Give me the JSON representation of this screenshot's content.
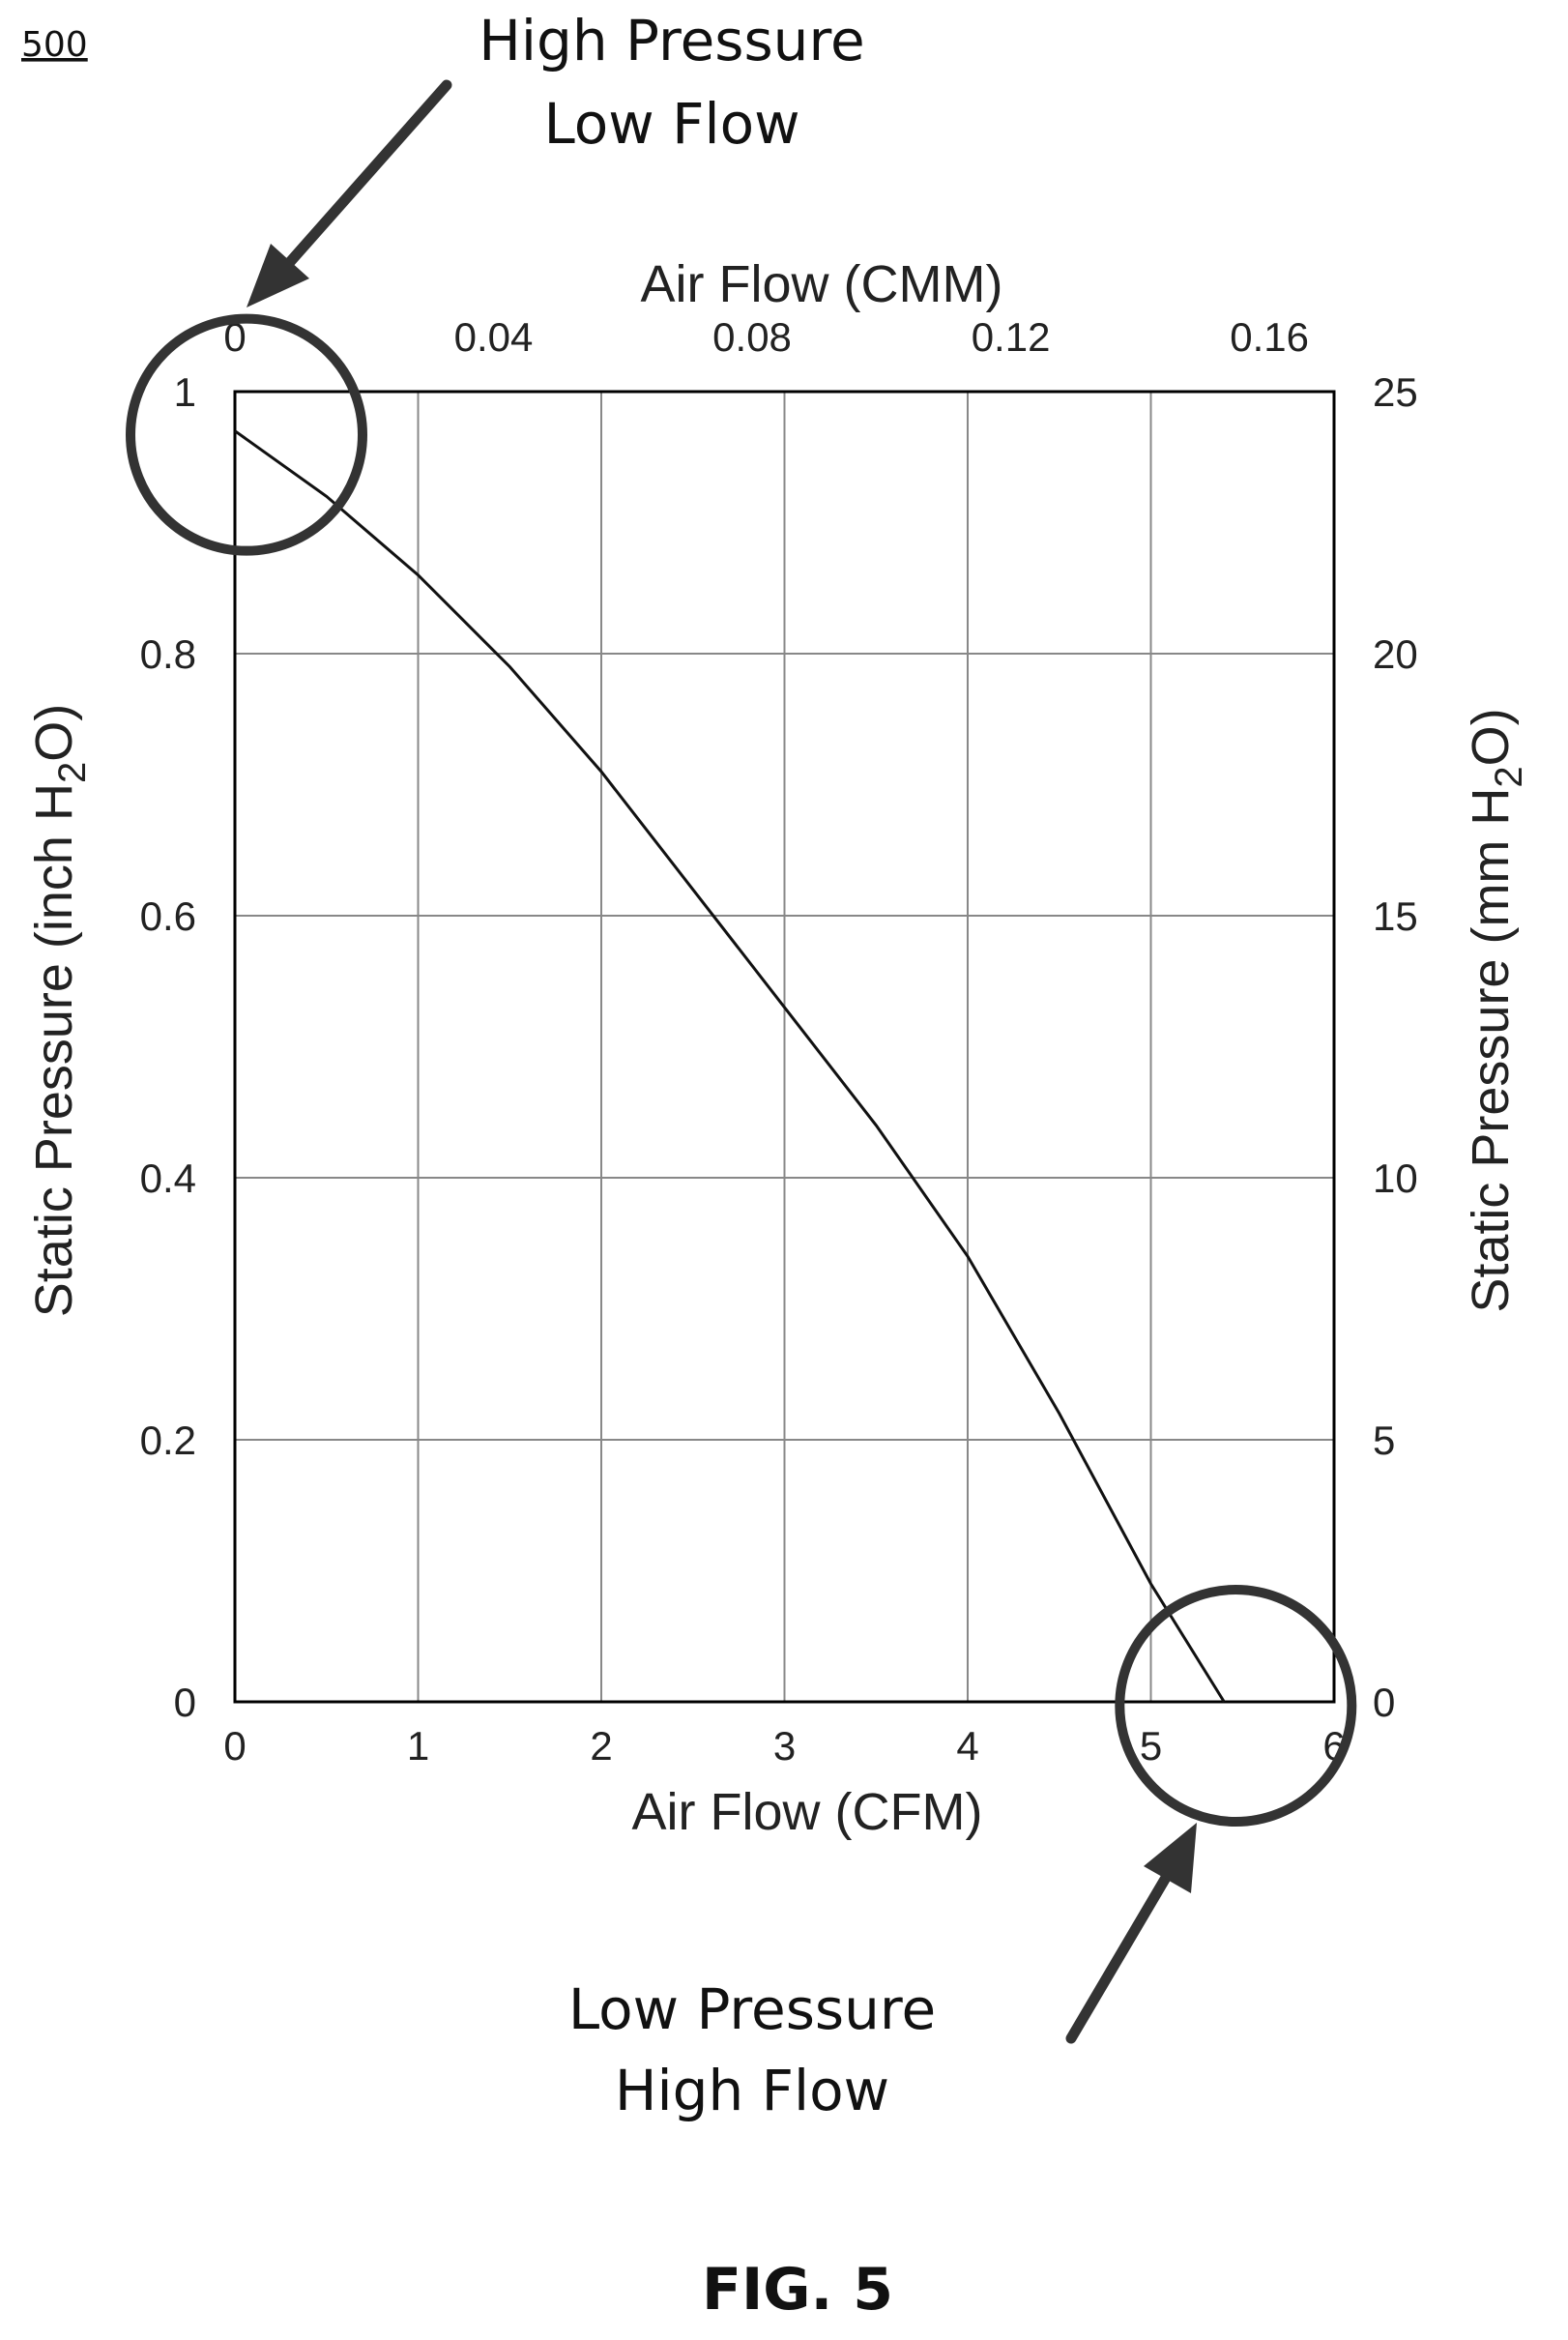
{
  "figure": {
    "ref_number": "500",
    "caption": "FIG. 5"
  },
  "annotations": {
    "top": {
      "line1": "High Pressure",
      "line2": "Low Flow"
    },
    "bottom": {
      "line1": "Low Pressure",
      "line2": "High Flow"
    }
  },
  "chart_data": {
    "type": "line",
    "xlabel": "Air Flow (CFM)",
    "x2label": "Air Flow (CMM)",
    "ylabel_left": "Static Pressure (inch H2O)",
    "ylabel_right": "Static Pressure (mm H2O)",
    "xlim": [
      0,
      6
    ],
    "ylim": [
      0,
      1
    ],
    "x2lim": [
      0,
      0.17
    ],
    "y2lim": [
      0,
      25
    ],
    "x_ticks": [
      "0",
      "1",
      "2",
      "3",
      "4",
      "5",
      "6"
    ],
    "x2_ticks": [
      "0",
      "0.04",
      "0.08",
      "0.12",
      "0.16"
    ],
    "x2_tick_values": [
      0,
      0.04,
      0.08,
      0.12,
      0.16
    ],
    "y_ticks": [
      "0",
      "0.2",
      "0.4",
      "0.6",
      "0.8",
      "1"
    ],
    "y2_ticks": [
      "0",
      "5",
      "10",
      "15",
      "20",
      "25"
    ],
    "grid": true,
    "series": [
      {
        "x": [
          0,
          0.5,
          1,
          1.5,
          2,
          2.5,
          3,
          3.5,
          4,
          4.5,
          5,
          5.4
        ],
        "y": [
          0.97,
          0.92,
          0.86,
          0.79,
          0.71,
          0.62,
          0.53,
          0.44,
          0.34,
          0.22,
          0.09,
          0.0
        ]
      }
    ],
    "highlights": [
      {
        "x": 0,
        "y": 0.97
      },
      {
        "x": 5.4,
        "y": 0.0
      }
    ]
  }
}
